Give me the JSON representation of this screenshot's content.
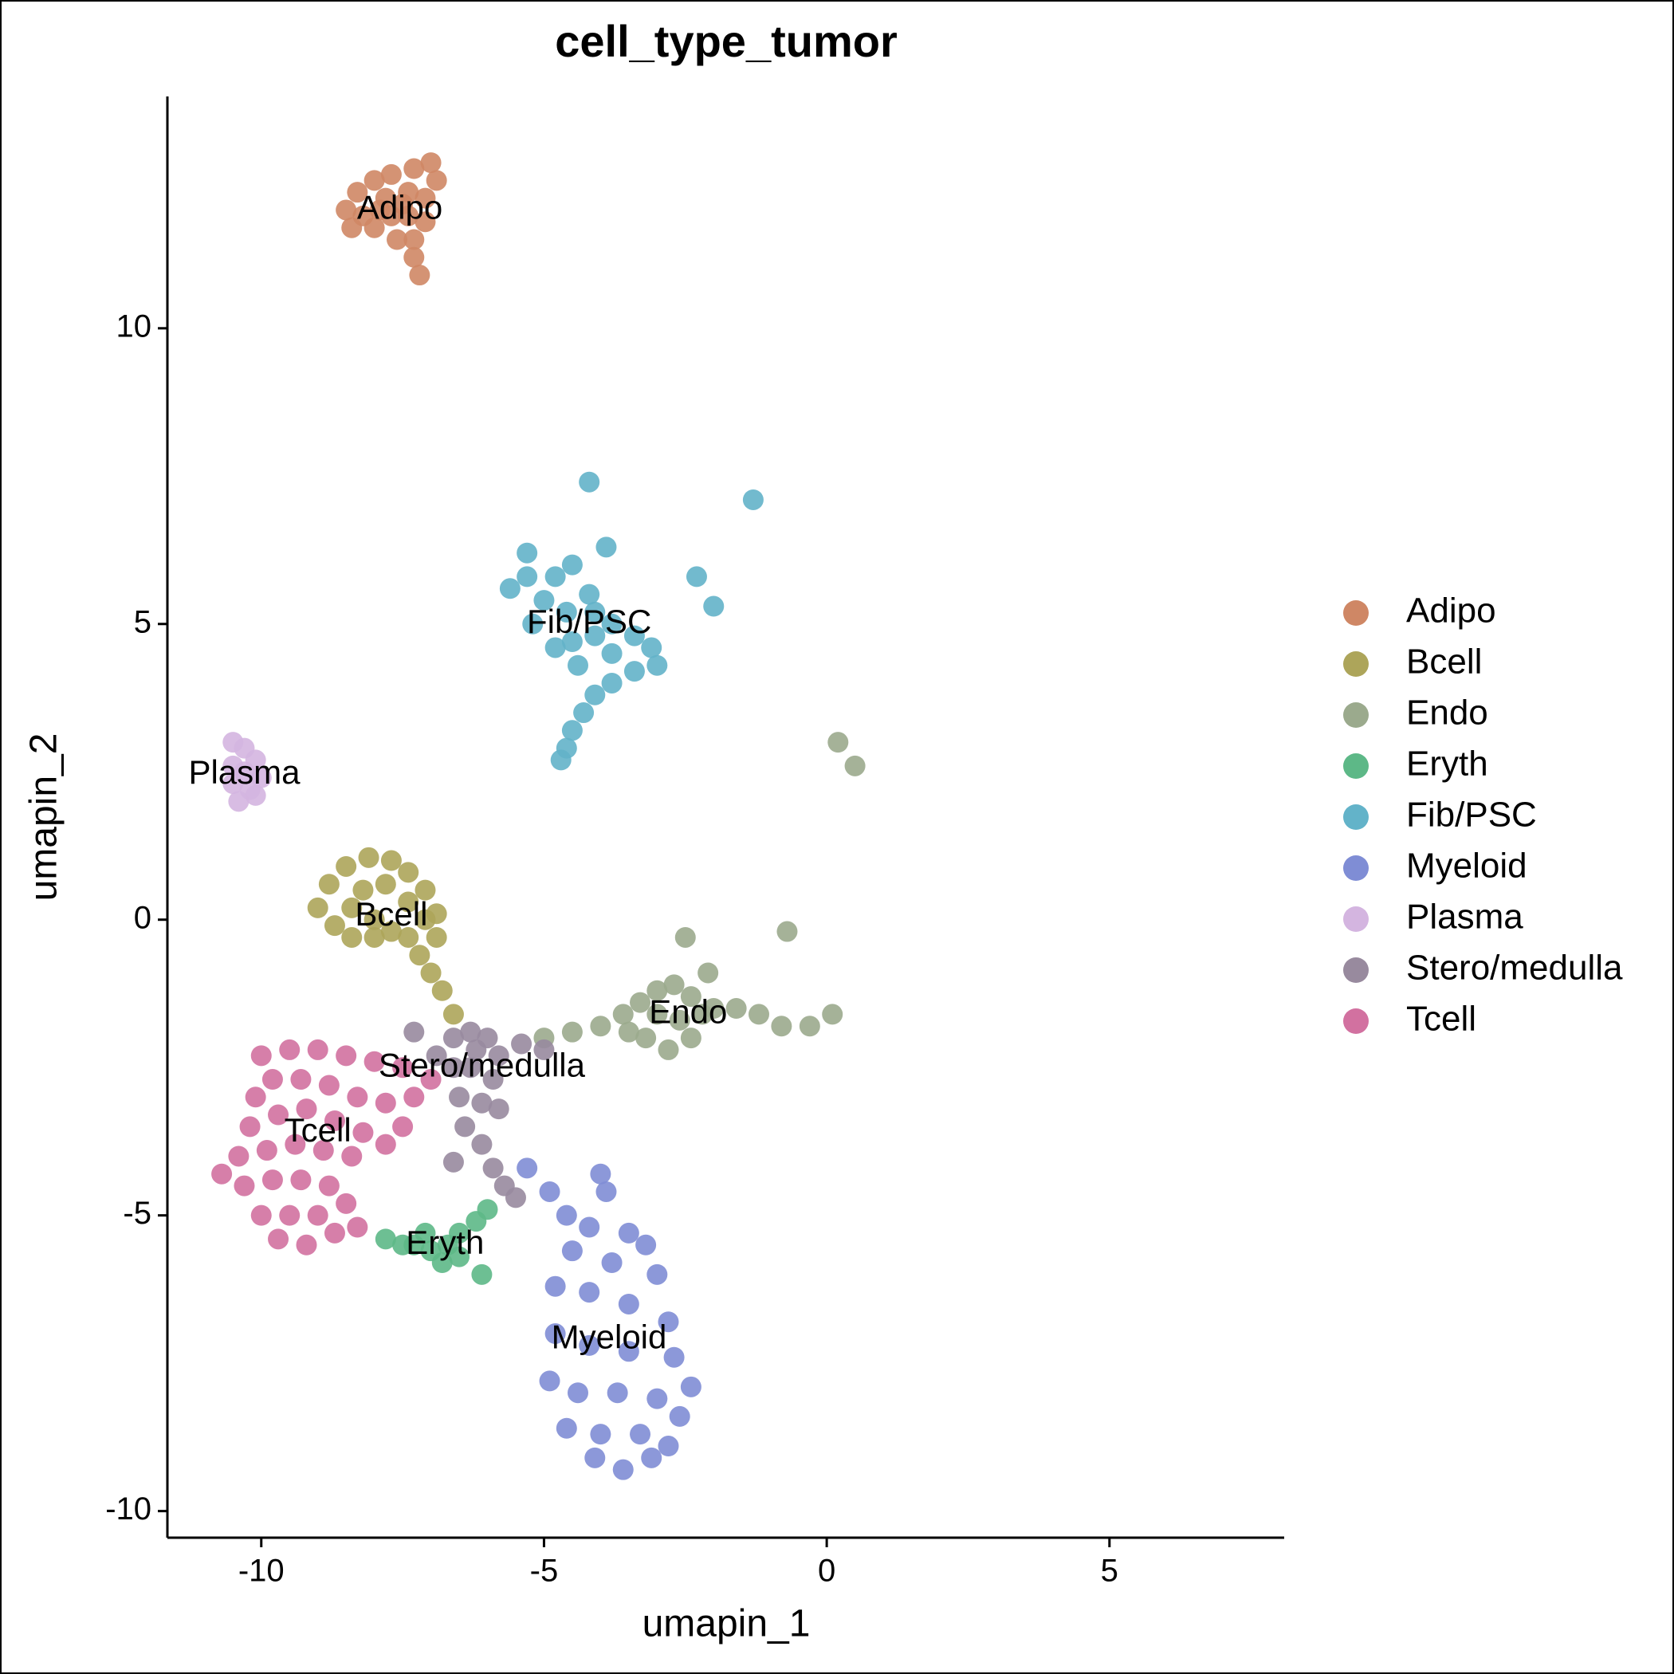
{
  "chart_data": {
    "type": "scatter",
    "title": "cell_type_tumor",
    "x_label": "umapin_1",
    "y_label": "umapin_2",
    "xlim": [
      -11.66,
      8.09
    ],
    "ylim": [
      -10.45,
      13.92
    ],
    "xticks": [
      -10,
      -5,
      0,
      5
    ],
    "yticks": [
      -10,
      -5,
      0,
      5,
      10
    ],
    "legend": "right",
    "series": [
      {
        "name": "Adipo",
        "color": "#cf8765",
        "x": [
          -8.5,
          -8.3,
          -8.0,
          -7.7,
          -7.3,
          -7.0,
          -6.9,
          -7.1,
          -7.4,
          -7.8,
          -8.2,
          -8.0,
          -7.7,
          -7.4,
          -7.1,
          -7.3,
          -7.6,
          -7.3,
          -7.2,
          -8.4,
          -7.9,
          -7.5
        ],
        "values": [
          12.0,
          12.3,
          12.5,
          12.6,
          12.7,
          12.8,
          12.5,
          12.2,
          12.3,
          12.2,
          11.9,
          11.7,
          11.9,
          11.9,
          11.8,
          11.5,
          11.5,
          11.2,
          10.9,
          11.7,
          12.0,
          12.1
        ]
      },
      {
        "name": "Bcell",
        "color": "#ada55a",
        "x": [
          -9.0,
          -8.8,
          -8.5,
          -8.1,
          -7.7,
          -7.4,
          -7.1,
          -6.9,
          -6.9,
          -7.2,
          -7.0,
          -6.8,
          -6.6,
          -7.4,
          -7.7,
          -8.0,
          -8.4,
          -8.7,
          -8.2,
          -7.8,
          -7.4,
          -8.4,
          -8.0,
          -7.1
        ],
        "values": [
          0.2,
          0.6,
          0.9,
          1.05,
          1.0,
          0.8,
          0.5,
          0.1,
          -0.3,
          -0.6,
          -0.9,
          -1.2,
          -1.6,
          -0.3,
          -0.2,
          0.0,
          0.2,
          -0.1,
          0.5,
          0.6,
          0.3,
          -0.3,
          -0.3,
          0.0
        ]
      },
      {
        "name": "Endo",
        "color": "#9baa8d",
        "x": [
          -5.0,
          -4.5,
          -4.0,
          -3.6,
          -3.3,
          -3.0,
          -2.7,
          -2.4,
          -2.2,
          -2.4,
          -2.8,
          -3.2,
          -3.0,
          -2.6,
          -3.5,
          -2.0,
          -1.6,
          -1.2,
          -0.8,
          -0.3,
          0.1,
          -2.5,
          -2.1,
          -0.7,
          0.5,
          0.2
        ],
        "values": [
          -2.0,
          -1.9,
          -1.8,
          -1.6,
          -1.4,
          -1.2,
          -1.1,
          -1.3,
          -1.6,
          -2.0,
          -2.2,
          -2.0,
          -1.6,
          -1.7,
          -1.9,
          -1.5,
          -1.5,
          -1.6,
          -1.8,
          -1.8,
          -1.6,
          -0.3,
          -0.9,
          -0.2,
          2.6,
          3.0
        ]
      },
      {
        "name": "Eryth",
        "color": "#5db887",
        "x": [
          -7.8,
          -7.3,
          -7.0,
          -6.7,
          -6.5,
          -6.2,
          -6.0,
          -6.8,
          -6.5,
          -6.1,
          -7.1,
          -7.5
        ],
        "values": [
          -5.4,
          -5.5,
          -5.6,
          -5.5,
          -5.3,
          -5.1,
          -4.9,
          -5.8,
          -5.7,
          -6.0,
          -5.3,
          -5.5
        ]
      },
      {
        "name": "Fib/PSC",
        "color": "#63b3c9",
        "x": [
          -5.6,
          -5.3,
          -5.0,
          -4.8,
          -4.5,
          -4.2,
          -3.8,
          -3.4,
          -3.1,
          -3.0,
          -3.4,
          -3.8,
          -4.1,
          -4.3,
          -4.5,
          -4.6,
          -4.7,
          -4.8,
          -5.2,
          -4.5,
          -4.1,
          -4.4,
          -3.8,
          -4.6,
          -4.1,
          -4.2,
          -3.9,
          -2.3,
          -2.0,
          -1.3,
          -5.3
        ],
        "values": [
          5.6,
          5.8,
          5.4,
          5.8,
          6.0,
          5.5,
          5.0,
          4.8,
          4.6,
          4.3,
          4.2,
          4.0,
          3.8,
          3.5,
          3.2,
          2.9,
          2.7,
          4.6,
          5.0,
          4.7,
          4.8,
          4.3,
          4.5,
          5.2,
          5.2,
          7.4,
          6.3,
          5.8,
          5.3,
          7.1,
          6.2
        ]
      },
      {
        "name": "Myeloid",
        "color": "#7f8dd5",
        "x": [
          -4.9,
          -4.6,
          -4.2,
          -3.9,
          -3.5,
          -3.2,
          -3.0,
          -3.8,
          -4.5,
          -4.8,
          -4.2,
          -3.5,
          -2.8,
          -4.8,
          -4.2,
          -3.5,
          -2.7,
          -2.4,
          -4.9,
          -4.4,
          -3.7,
          -3.0,
          -2.6,
          -4.6,
          -4.0,
          -3.3,
          -2.8,
          -4.1,
          -3.6,
          -3.1,
          -5.3,
          -4.0
        ],
        "values": [
          -4.6,
          -5.0,
          -5.2,
          -4.6,
          -5.3,
          -5.5,
          -6.0,
          -5.8,
          -5.6,
          -6.2,
          -6.3,
          -6.5,
          -6.8,
          -7.0,
          -7.2,
          -7.3,
          -7.4,
          -7.9,
          -7.8,
          -8.0,
          -8.0,
          -8.1,
          -8.4,
          -8.6,
          -8.7,
          -8.7,
          -8.9,
          -9.1,
          -9.3,
          -9.1,
          -4.2,
          -4.3
        ]
      },
      {
        "name": "Plasma",
        "color": "#d4b5e0",
        "x": [
          -10.5,
          -10.3,
          -10.1,
          -10.5,
          -10.3,
          -10.0,
          -10.5,
          -10.2,
          -10.4,
          -10.1
        ],
        "values": [
          3.0,
          2.9,
          2.7,
          2.6,
          2.5,
          2.4,
          2.3,
          2.2,
          2.0,
          2.1
        ]
      },
      {
        "name": "Stero/medulla",
        "color": "#988a9e",
        "x": [
          -6.6,
          -6.3,
          -6.0,
          -5.8,
          -6.6,
          -6.3,
          -5.9,
          -6.5,
          -6.1,
          -5.8,
          -6.4,
          -6.1,
          -5.9,
          -5.7,
          -5.5,
          -6.6,
          -7.3,
          -5.4,
          -5.0,
          -6.9,
          -6.2
        ],
        "values": [
          -2.0,
          -1.9,
          -2.0,
          -2.3,
          -2.5,
          -2.5,
          -2.7,
          -3.0,
          -3.1,
          -3.2,
          -3.5,
          -3.8,
          -4.2,
          -4.5,
          -4.7,
          -4.1,
          -1.9,
          -2.1,
          -2.2,
          -2.3,
          -2.2
        ]
      },
      {
        "name": "Tcell",
        "color": "#d271a0",
        "x": [
          -10.0,
          -9.5,
          -9.0,
          -8.5,
          -8.0,
          -7.5,
          -7.0,
          -7.3,
          -7.8,
          -8.3,
          -8.8,
          -9.3,
          -9.8,
          -10.1,
          -10.2,
          -9.7,
          -9.2,
          -8.7,
          -8.2,
          -7.8,
          -8.4,
          -8.9,
          -9.4,
          -9.9,
          -10.4,
          -10.7,
          -10.3,
          -9.8,
          -9.3,
          -8.8,
          -8.5,
          -9.0,
          -9.5,
          -10.0,
          -9.7,
          -9.2,
          -8.7,
          -8.3,
          -7.5
        ],
        "values": [
          -2.3,
          -2.2,
          -2.2,
          -2.3,
          -2.4,
          -2.5,
          -2.7,
          -3.0,
          -3.1,
          -3.0,
          -2.8,
          -2.7,
          -2.7,
          -3.0,
          -3.5,
          -3.3,
          -3.2,
          -3.4,
          -3.6,
          -3.8,
          -4.0,
          -3.9,
          -3.8,
          -3.9,
          -4.0,
          -4.3,
          -4.5,
          -4.4,
          -4.4,
          -4.5,
          -4.8,
          -5.0,
          -5.0,
          -5.0,
          -5.4,
          -5.5,
          -5.3,
          -5.2,
          -3.5
        ]
      }
    ]
  }
}
